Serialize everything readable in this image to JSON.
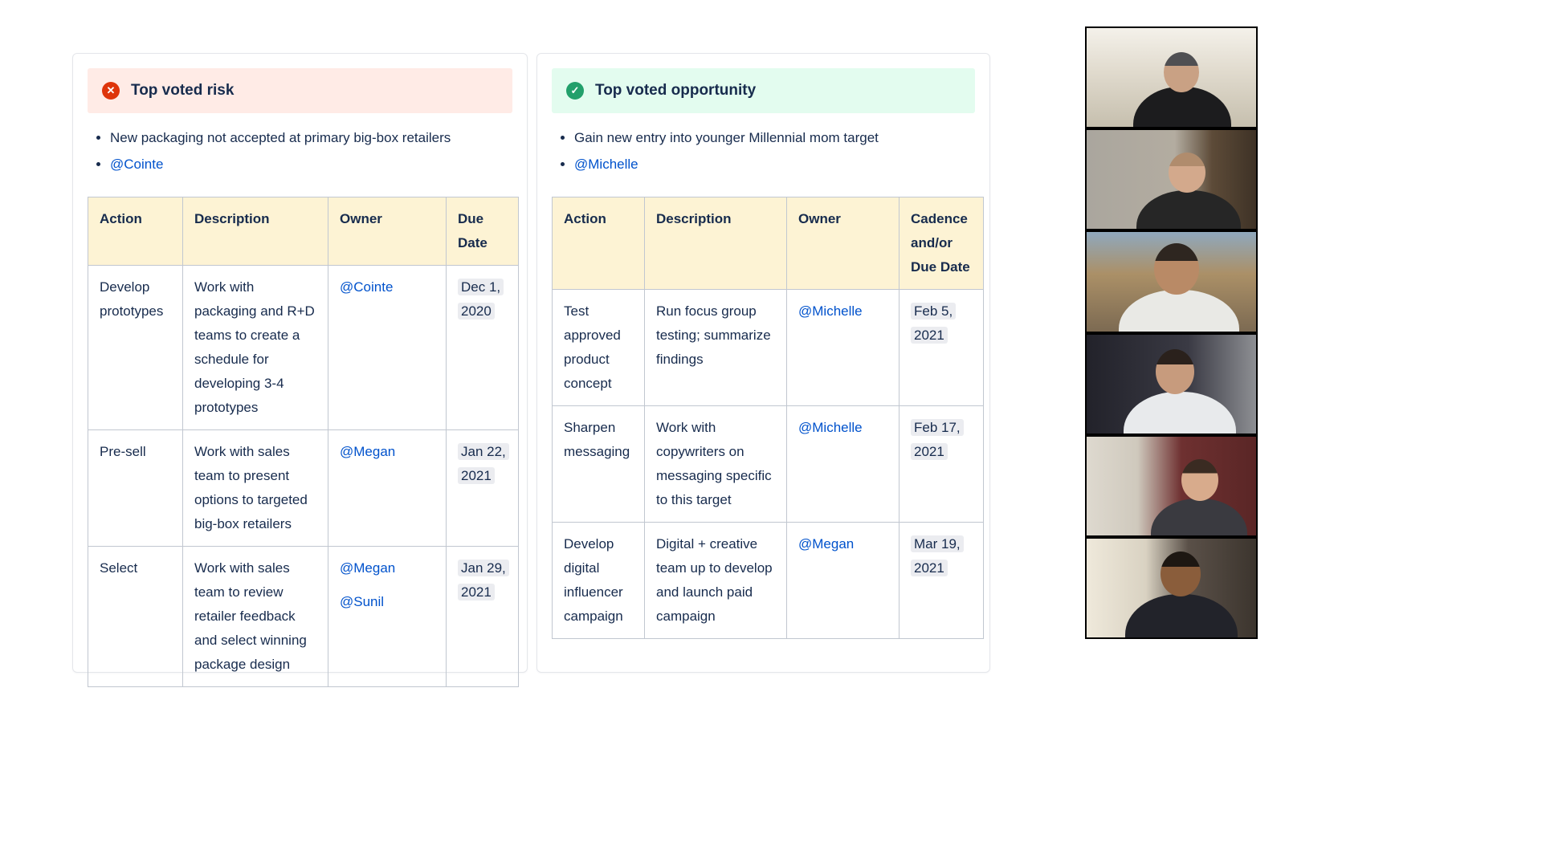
{
  "page": {
    "background": "#ffffff"
  },
  "colors": {
    "risk_banner_bg": "#ffebe6",
    "risk_icon": "#de350b",
    "opportunity_banner_bg": "#e3fcef",
    "opportunity_icon": "#22a06b",
    "table_header_bg": "#fdf3d4",
    "link_blue": "#0052cc",
    "text": "#172b4d",
    "date_chip_bg": "#ebecf0"
  },
  "risk": {
    "title": "Top voted risk",
    "icon": "error-cross-icon",
    "bullets": [
      "New packaging not accepted at primary big-box retailers",
      "@Cointe"
    ],
    "table": {
      "headers": [
        "Action",
        "Description",
        "Owner",
        "Due Date"
      ],
      "rows": [
        {
          "action": "Develop prototypes",
          "description": "Work with packaging and R+D teams to create a schedule for developing 3-4 prototypes",
          "owners": [
            "@Cointe"
          ],
          "due": "Dec 1, 2020"
        },
        {
          "action": "Pre-sell",
          "description": "Work with sales team to present options to targeted big-box retailers",
          "owners": [
            "@Megan"
          ],
          "due": "Jan 22, 2021"
        },
        {
          "action": "Select",
          "description": "Work with sales team to review retailer feedback and select winning package design",
          "owners": [
            "@Megan",
            "@Sunil"
          ],
          "due": "Jan 29, 2021"
        }
      ]
    }
  },
  "opportunity": {
    "title": "Top voted opportunity",
    "icon": "success-check-icon",
    "bullets": [
      "Gain new entry into younger Millennial mom target",
      "@Michelle"
    ],
    "table": {
      "headers": [
        "Action",
        "Description",
        "Owner",
        "Cadence and/or Due Date"
      ],
      "rows": [
        {
          "action": "Test approved product concept",
          "description": "Run focus group testing; summarize findings",
          "owners": [
            "@Michelle"
          ],
          "due": "Feb 5, 2021"
        },
        {
          "action": "Sharpen messaging",
          "description": "Work with copywriters on messaging specific to this target",
          "owners": [
            "@Michelle"
          ],
          "due": "Feb 17, 2021"
        },
        {
          "action": "Develop digital influencer campaign",
          "description": "Digital + creative team up to develop and launch paid campaign",
          "owners": [
            "@Megan"
          ],
          "due": "Mar 19, 2021"
        }
      ]
    }
  },
  "video_panel": {
    "participant_count": 6,
    "participants": [
      {
        "id": "participant-1"
      },
      {
        "id": "participant-2"
      },
      {
        "id": "participant-3"
      },
      {
        "id": "participant-4"
      },
      {
        "id": "participant-5"
      },
      {
        "id": "participant-6"
      }
    ]
  }
}
